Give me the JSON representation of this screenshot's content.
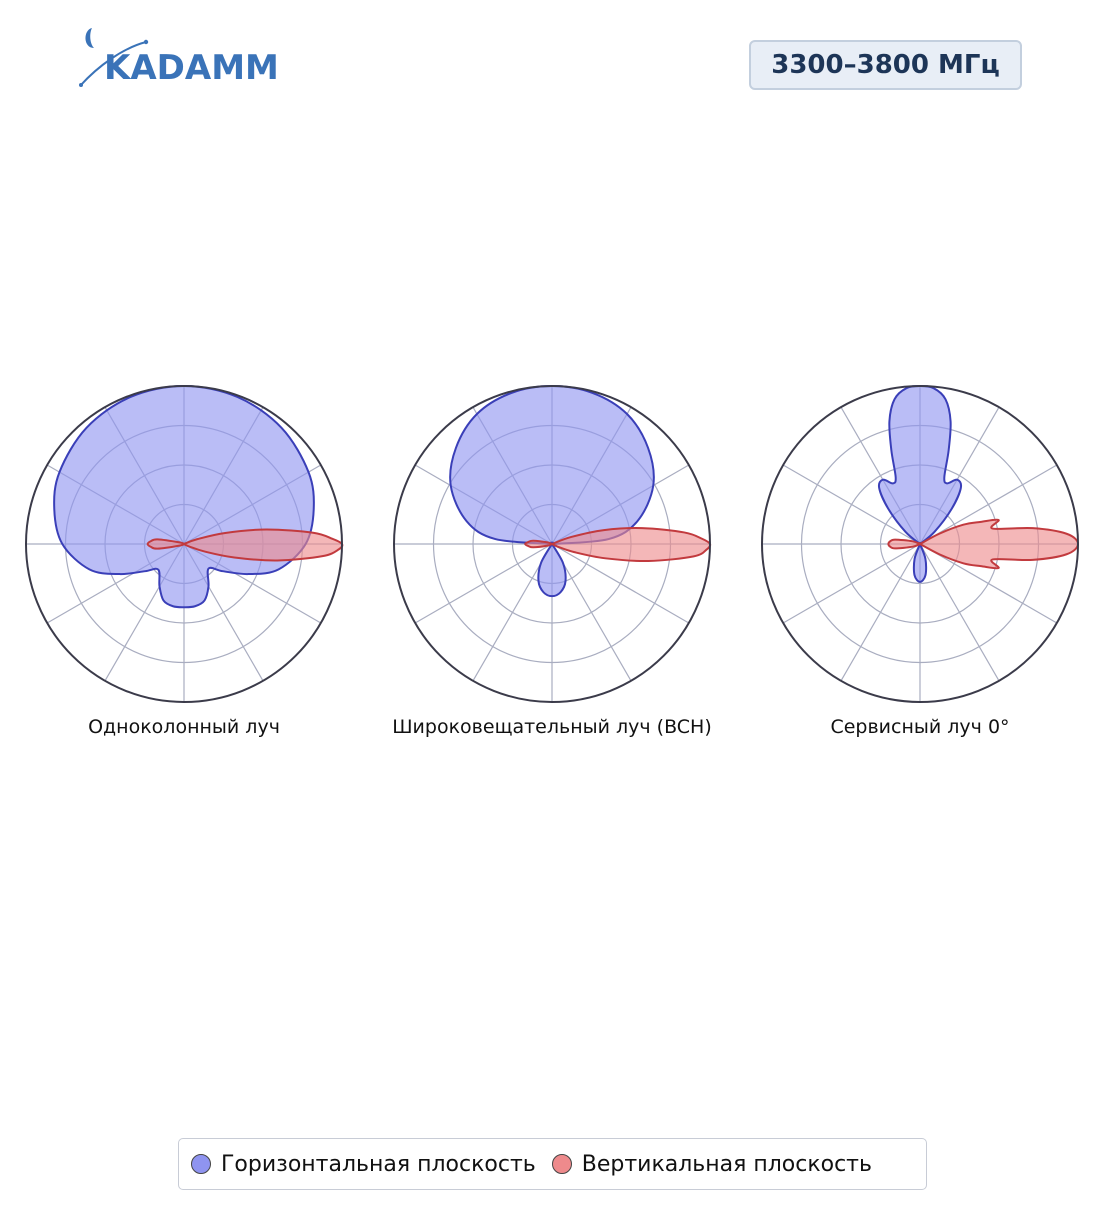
{
  "header": {
    "logo_text": "KADAMM",
    "band_label": "3300–3800 МГц"
  },
  "legend": {
    "horizontal_label": "Горизонтальная плоскость",
    "vertical_label": "Вертикальная плоскость"
  },
  "colors": {
    "horizontal_fill": "#8f94f0",
    "horizontal_stroke": "#3a3fb8",
    "vertical_fill": "#ee8a8c",
    "vertical_stroke": "#c23a3e",
    "grid": "#a9adc0",
    "outer_ring": "#3b3b4a",
    "brand": "#3a73b8"
  },
  "chart_data": [
    {
      "type": "polar",
      "title": "Одноколонный луч",
      "rmax": 1,
      "grid_rings": 4,
      "grid_spokes_deg": 30,
      "series": [
        {
          "name": "Горизонтальная плоскость",
          "points": [
            [
              0,
              1.0
            ],
            [
              20,
              0.99
            ],
            [
              40,
              0.96
            ],
            [
              60,
              0.91
            ],
            [
              75,
              0.85
            ],
            [
              90,
              0.77
            ],
            [
              105,
              0.62
            ],
            [
              115,
              0.45
            ],
            [
              125,
              0.3
            ],
            [
              135,
              0.22
            ],
            [
              150,
              0.31
            ],
            [
              160,
              0.38
            ],
            [
              170,
              0.4
            ],
            [
              180,
              0.4
            ],
            [
              190,
              0.4
            ],
            [
              200,
              0.38
            ],
            [
              210,
              0.31
            ],
            [
              225,
              0.23
            ],
            [
              235,
              0.3
            ],
            [
              245,
              0.45
            ],
            [
              255,
              0.62
            ],
            [
              270,
              0.77
            ],
            [
              285,
              0.85
            ],
            [
              300,
              0.91
            ],
            [
              320,
              0.96
            ],
            [
              340,
              0.99
            ]
          ]
        },
        {
          "name": "Вертикальная плоскость",
          "points": [
            [
              0,
              0.0
            ],
            [
              60,
              0.0
            ],
            [
              70,
              0.09
            ],
            [
              75,
              0.27
            ],
            [
              80,
              0.53
            ],
            [
              85,
              0.82
            ],
            [
              88,
              0.94
            ],
            [
              90,
              1.0
            ],
            [
              92,
              0.98
            ],
            [
              95,
              0.88
            ],
            [
              100,
              0.6
            ],
            [
              105,
              0.33
            ],
            [
              110,
              0.14
            ],
            [
              115,
              0.04
            ],
            [
              120,
              0.0
            ],
            [
              240,
              0.0
            ],
            [
              250,
              0.03
            ],
            [
              260,
              0.17
            ],
            [
              265,
              0.21
            ],
            [
              270,
              0.23
            ],
            [
              275,
              0.21
            ],
            [
              280,
              0.17
            ],
            [
              290,
              0.03
            ],
            [
              300,
              0.0
            ]
          ]
        }
      ]
    },
    {
      "type": "polar",
      "title": "Широковещательный луч (BCH)",
      "rmax": 1,
      "grid_rings": 4,
      "grid_spokes_deg": 30,
      "series": [
        {
          "name": "Горизонтальная плоскость",
          "points": [
            [
              0,
              1.0
            ],
            [
              15,
              0.99
            ],
            [
              30,
              0.95
            ],
            [
              45,
              0.86
            ],
            [
              60,
              0.74
            ],
            [
              75,
              0.56
            ],
            [
              85,
              0.36
            ],
            [
              90,
              0.0
            ],
            [
              100,
              0.0
            ],
            [
              140,
              0.0
            ],
            [
              150,
              0.14
            ],
            [
              160,
              0.25
            ],
            [
              170,
              0.31
            ],
            [
              180,
              0.33
            ],
            [
              190,
              0.31
            ],
            [
              200,
              0.25
            ],
            [
              210,
              0.14
            ],
            [
              220,
              0.0
            ],
            [
              260,
              0.0
            ],
            [
              270,
              0.0
            ],
            [
              275,
              0.36
            ],
            [
              285,
              0.56
            ],
            [
              300,
              0.74
            ],
            [
              315,
              0.86
            ],
            [
              330,
              0.95
            ],
            [
              345,
              0.99
            ]
          ]
        },
        {
          "name": "Вертикальная плоскость",
          "points": [
            [
              0,
              0.0
            ],
            [
              60,
              0.0
            ],
            [
              70,
              0.13
            ],
            [
              75,
              0.34
            ],
            [
              80,
              0.58
            ],
            [
              85,
              0.84
            ],
            [
              88,
              0.95
            ],
            [
              90,
              1.0
            ],
            [
              92,
              0.98
            ],
            [
              95,
              0.9
            ],
            [
              100,
              0.62
            ],
            [
              105,
              0.35
            ],
            [
              110,
              0.15
            ],
            [
              115,
              0.04
            ],
            [
              120,
              0.0
            ],
            [
              240,
              0.0
            ],
            [
              250,
              0.03
            ],
            [
              260,
              0.12
            ],
            [
              265,
              0.15
            ],
            [
              270,
              0.17
            ],
            [
              275,
              0.15
            ],
            [
              280,
              0.12
            ],
            [
              290,
              0.03
            ],
            [
              300,
              0.0
            ]
          ]
        }
      ]
    },
    {
      "type": "polar",
      "title": "Сервисный луч 0°",
      "rmax": 1,
      "grid_rings": 4,
      "grid_spokes_deg": 30,
      "series": [
        {
          "name": "Горизонтальная плоскость",
          "points": [
            [
              0,
              1.0
            ],
            [
              5,
              0.99
            ],
            [
              10,
              0.93
            ],
            [
              14,
              0.8
            ],
            [
              17,
              0.62
            ],
            [
              20,
              0.45
            ],
            [
              24,
              0.42
            ],
            [
              30,
              0.47
            ],
            [
              36,
              0.44
            ],
            [
              42,
              0.3
            ],
            [
              50,
              0.12
            ],
            [
              60,
              0.0
            ],
            [
              90,
              0.0
            ],
            [
              150,
              0.0
            ],
            [
              160,
              0.1
            ],
            [
              170,
              0.2
            ],
            [
              180,
              0.24
            ],
            [
              190,
              0.2
            ],
            [
              200,
              0.1
            ],
            [
              210,
              0.0
            ],
            [
              270,
              0.0
            ],
            [
              300,
              0.0
            ],
            [
              310,
              0.12
            ],
            [
              318,
              0.3
            ],
            [
              324,
              0.44
            ],
            [
              330,
              0.47
            ],
            [
              336,
              0.42
            ],
            [
              340,
              0.45
            ],
            [
              343,
              0.62
            ],
            [
              346,
              0.8
            ],
            [
              350,
              0.93
            ],
            [
              355,
              0.99
            ]
          ]
        },
        {
          "name": "Вертикальная плоскость",
          "points": [
            [
              0,
              0.0
            ],
            [
              55,
              0.0
            ],
            [
              62,
              0.14
            ],
            [
              66,
              0.3
            ],
            [
              70,
              0.41
            ],
            [
              73,
              0.52
            ],
            [
              78,
              0.47
            ],
            [
              82,
              0.72
            ],
            [
              86,
              0.93
            ],
            [
              90,
              1.0
            ],
            [
              94,
              0.93
            ],
            [
              98,
              0.72
            ],
            [
              102,
              0.47
            ],
            [
              107,
              0.52
            ],
            [
              110,
              0.41
            ],
            [
              114,
              0.3
            ],
            [
              118,
              0.14
            ],
            [
              125,
              0.0
            ],
            [
              240,
              0.0
            ],
            [
              250,
              0.05
            ],
            [
              260,
              0.16
            ],
            [
              265,
              0.19
            ],
            [
              270,
              0.2
            ],
            [
              275,
              0.19
            ],
            [
              280,
              0.16
            ],
            [
              290,
              0.05
            ],
            [
              300,
              0.0
            ]
          ]
        }
      ]
    }
  ]
}
